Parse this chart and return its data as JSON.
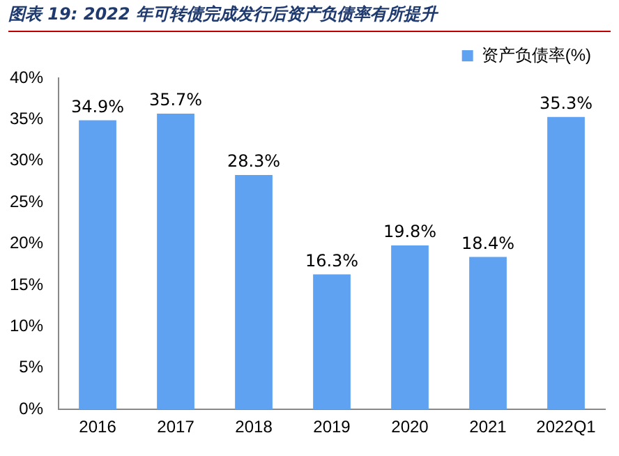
{
  "chart_data": {
    "type": "bar",
    "title": "图表 19:  2022 年可转债完成发行后资产负债率有所提升",
    "categories": [
      "2016",
      "2017",
      "2018",
      "2019",
      "2020",
      "2021",
      "2022Q1"
    ],
    "series": [
      {
        "name": "资产负债率(%)",
        "color": "#5fa2f2",
        "values": [
          34.9,
          35.7,
          28.3,
          16.3,
          19.8,
          18.4,
          35.3
        ]
      }
    ],
    "ylim": [
      0,
      40
    ],
    "yticks": [
      {
        "value": 0,
        "label": "0%"
      },
      {
        "value": 5,
        "label": "5%"
      },
      {
        "value": 10,
        "label": "10%"
      },
      {
        "value": 15,
        "label": "15%"
      },
      {
        "value": 20,
        "label": "20%"
      },
      {
        "value": 25,
        "label": "25%"
      },
      {
        "value": 30,
        "label": "30%"
      },
      {
        "value": 35,
        "label": "35%"
      },
      {
        "value": 40,
        "label": "40%"
      }
    ],
    "value_labels": [
      "34.9%",
      "35.7%",
      "28.3%",
      "16.3%",
      "19.8%",
      "18.4%",
      "35.3%"
    ],
    "grid": false,
    "legend": "top"
  }
}
